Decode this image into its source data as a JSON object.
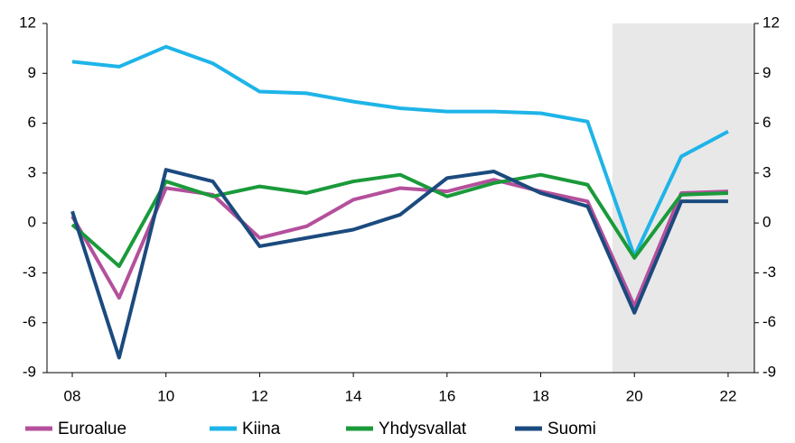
{
  "chart_data": {
    "type": "line",
    "x": [
      2008,
      2009,
      2010,
      2011,
      2012,
      2013,
      2014,
      2015,
      2016,
      2017,
      2018,
      2019,
      2020,
      2021,
      2022
    ],
    "series": [
      {
        "name": "Euroalue",
        "color": "#b4509c",
        "values": [
          0.4,
          -4.5,
          2.1,
          1.7,
          -0.9,
          -0.2,
          1.4,
          2.1,
          1.9,
          2.6,
          1.9,
          1.3,
          -5.0,
          1.8,
          1.9
        ]
      },
      {
        "name": "Kiina",
        "color": "#1eb4e8",
        "values": [
          9.7,
          9.4,
          10.6,
          9.6,
          7.9,
          7.8,
          7.3,
          6.9,
          6.7,
          6.7,
          6.6,
          6.1,
          -2.0,
          4.0,
          5.5
        ]
      },
      {
        "name": "Yhdysvallat",
        "color": "#1a9a3a",
        "values": [
          -0.1,
          -2.6,
          2.5,
          1.6,
          2.2,
          1.8,
          2.5,
          2.9,
          1.6,
          2.4,
          2.9,
          2.3,
          -2.1,
          1.7,
          1.8
        ]
      },
      {
        "name": "Suomi",
        "color": "#1b4a7e",
        "values": [
          0.7,
          -8.1,
          3.2,
          2.5,
          -1.4,
          -0.9,
          -0.4,
          0.5,
          2.7,
          3.1,
          1.8,
          1.0,
          -5.4,
          1.3,
          1.3
        ]
      }
    ],
    "xlim": [
      2007.46,
      2022.56
    ],
    "xticks": [
      {
        "value": 2008,
        "label": "08"
      },
      {
        "value": 2010,
        "label": "10"
      },
      {
        "value": 2012,
        "label": "12"
      },
      {
        "value": 2014,
        "label": "14"
      },
      {
        "value": 2016,
        "label": "16"
      },
      {
        "value": 2018,
        "label": "18"
      },
      {
        "value": 2020,
        "label": "20"
      },
      {
        "value": 2022,
        "label": "22"
      }
    ],
    "ylim": [
      -9,
      12
    ],
    "yticks": [
      -9,
      -6,
      -3,
      0,
      3,
      6,
      9,
      12
    ],
    "y2lim": [
      -9,
      12
    ],
    "y2ticks": [
      -9,
      -6,
      -3,
      0,
      3,
      6,
      9,
      12
    ],
    "shaded_x": [
      2019.53,
      2022.56
    ],
    "legend": "bottom"
  }
}
